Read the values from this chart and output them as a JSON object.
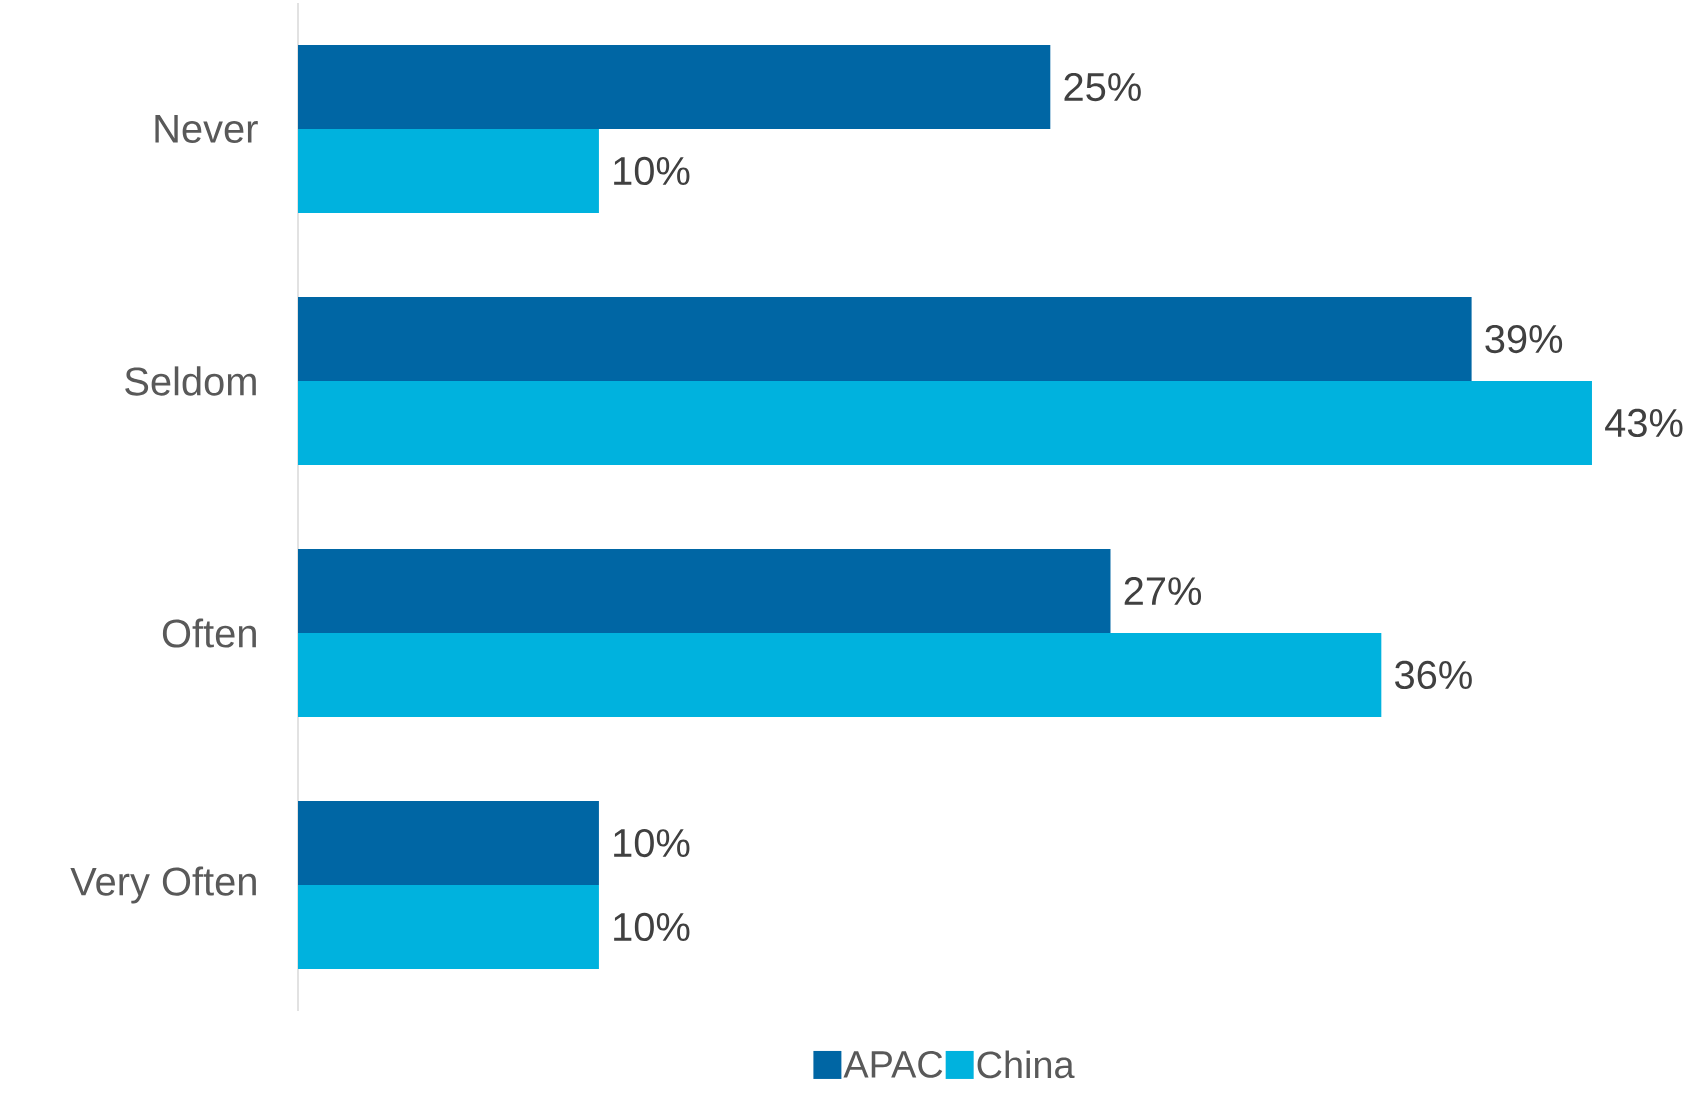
{
  "chart_data": {
    "type": "bar",
    "orientation": "horizontal",
    "categories": [
      "Never",
      "Seldom",
      "Often",
      "Very Often"
    ],
    "series": [
      {
        "name": "APAC",
        "color": "#0066a4",
        "values": [
          25,
          39,
          27,
          10
        ],
        "value_labels": [
          "25%",
          "39%",
          "27%",
          "10%"
        ]
      },
      {
        "name": "China",
        "color": "#00b2de",
        "values": [
          10,
          43,
          36,
          10
        ],
        "value_labels": [
          "10%",
          "43%",
          "36%",
          "10%"
        ]
      }
    ],
    "legend": "bottom"
  }
}
